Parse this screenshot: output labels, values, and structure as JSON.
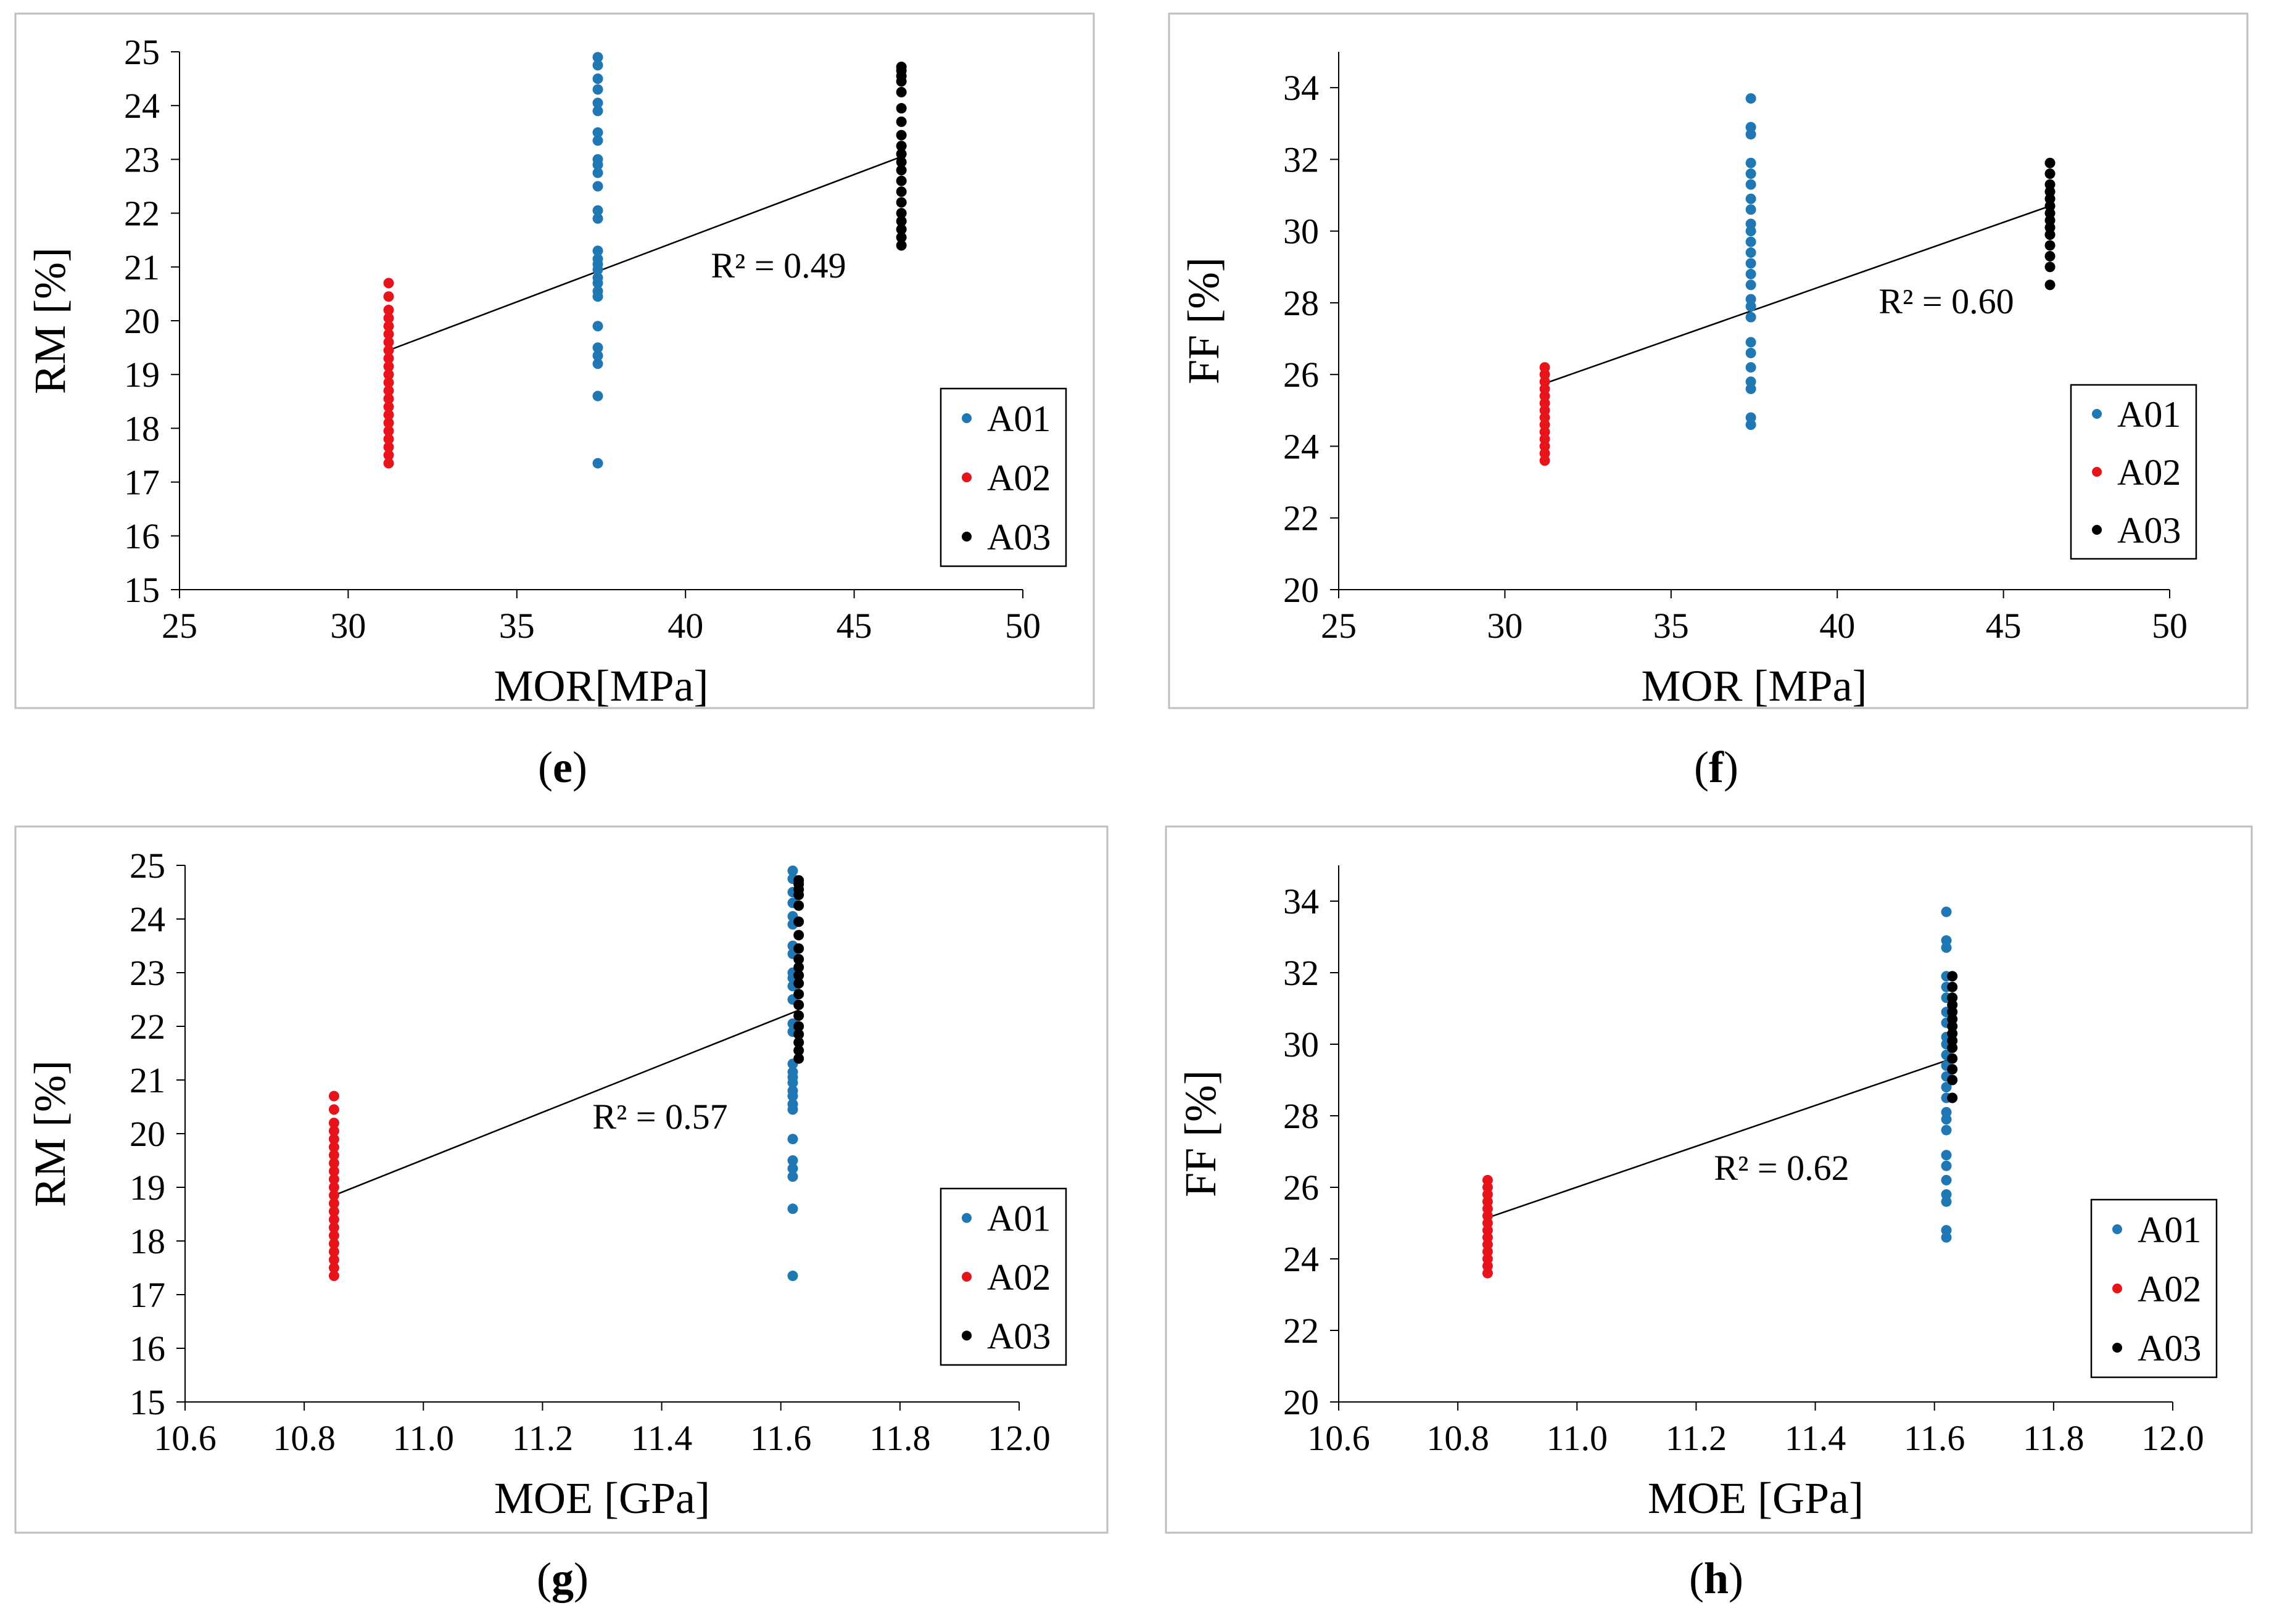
{
  "chart_data": [
    {
      "panel": "(e)",
      "panel_letter": "e",
      "type": "scatter",
      "xlabel": "MOR[MPa]",
      "ylabel": "RM [%]",
      "xlim": [
        25,
        50
      ],
      "ylim": [
        15,
        25
      ],
      "xticks": [
        "25",
        "30",
        "35",
        "40",
        "45",
        "50"
      ],
      "yticks": [
        "15",
        "16",
        "17",
        "18",
        "19",
        "20",
        "21",
        "22",
        "23",
        "24",
        "25"
      ],
      "grid": false,
      "legend_position": "bottom-right",
      "r2_label": "R² = 0.49",
      "trendline": {
        "x": [
          31.2,
          46.4
        ],
        "y": [
          19.45,
          23.05
        ]
      },
      "series": [
        {
          "name": "A01",
          "color": "#1f77b4",
          "x": 37.4,
          "y": [
            17.35,
            18.6,
            19.2,
            19.35,
            19.5,
            19.9,
            20.45,
            20.55,
            20.7,
            20.8,
            20.95,
            21.05,
            21.15,
            21.3,
            21.9,
            22.05,
            22.5,
            22.75,
            22.9,
            23.0,
            23.35,
            23.5,
            23.9,
            24.05,
            24.3,
            24.5,
            24.75,
            24.9
          ]
        },
        {
          "name": "A02",
          "color": "#e8141b",
          "x": 31.2,
          "y": [
            17.35,
            17.5,
            17.65,
            17.8,
            17.95,
            18.1,
            18.25,
            18.4,
            18.55,
            18.7,
            18.85,
            19.0,
            19.15,
            19.3,
            19.45,
            19.6,
            19.75,
            19.9,
            20.05,
            20.2,
            20.45,
            20.7
          ]
        },
        {
          "name": "A03",
          "color": "#000000",
          "x": 46.4,
          "y": [
            21.4,
            21.55,
            21.7,
            21.85,
            22.0,
            22.2,
            22.4,
            22.6,
            22.8,
            22.95,
            23.1,
            23.25,
            23.45,
            23.7,
            23.95,
            24.25,
            24.45,
            24.55,
            24.65,
            24.72
          ]
        }
      ]
    },
    {
      "panel": "(f)",
      "panel_letter": "f",
      "type": "scatter",
      "xlabel": "MOR [MPa]",
      "ylabel": "FF [%]",
      "xlim": [
        25,
        50
      ],
      "ylim": [
        20,
        35
      ],
      "xticks": [
        "25",
        "30",
        "35",
        "40",
        "45",
        "50"
      ],
      "yticks": [
        "20",
        "22",
        "24",
        "26",
        "28",
        "30",
        "32",
        "34"
      ],
      "grid": false,
      "legend_position": "bottom-right",
      "r2_label": "R² = 0.60",
      "trendline": {
        "x": [
          31.2,
          46.4
        ],
        "y": [
          25.75,
          30.7
        ]
      },
      "series": [
        {
          "name": "A01",
          "color": "#1f77b4",
          "x": 37.4,
          "y": [
            24.6,
            24.8,
            25.6,
            25.8,
            26.2,
            26.6,
            26.9,
            27.6,
            27.9,
            28.1,
            28.5,
            28.8,
            29.1,
            29.4,
            29.7,
            30.0,
            30.2,
            30.6,
            30.9,
            31.3,
            31.6,
            31.9,
            32.7,
            32.9,
            33.7
          ]
        },
        {
          "name": "A02",
          "color": "#e8141b",
          "x": 31.2,
          "y": [
            23.6,
            23.8,
            24.0,
            24.2,
            24.4,
            24.6,
            24.8,
            25.0,
            25.2,
            25.4,
            25.6,
            25.8,
            26.0,
            26.2
          ]
        },
        {
          "name": "A03",
          "color": "#000000",
          "x": 46.4,
          "y": [
            28.5,
            29.0,
            29.3,
            29.6,
            29.9,
            30.1,
            30.3,
            30.5,
            30.7,
            30.9,
            31.1,
            31.3,
            31.6,
            31.9
          ]
        }
      ]
    },
    {
      "panel": "(g)",
      "panel_letter": "g",
      "type": "scatter",
      "xlabel": "MOE [GPa]",
      "ylabel": "RM [%]",
      "xlim": [
        10.6,
        12.0
      ],
      "ylim": [
        15,
        25
      ],
      "xticks": [
        "10.6",
        "10.8",
        "11.0",
        "11.2",
        "11.4",
        "11.6",
        "11.8",
        "12.0"
      ],
      "yticks": [
        "15",
        "16",
        "17",
        "18",
        "19",
        "20",
        "21",
        "22",
        "23",
        "24",
        "25"
      ],
      "grid": false,
      "legend_position": "bottom-right",
      "r2_label": "R² = 0.57",
      "trendline": {
        "x": [
          10.85,
          11.63
        ],
        "y": [
          18.85,
          22.3
        ]
      },
      "series": [
        {
          "name": "A01",
          "color": "#1f77b4",
          "x": 11.62,
          "y": [
            17.35,
            18.6,
            19.2,
            19.35,
            19.5,
            19.9,
            20.45,
            20.55,
            20.7,
            20.8,
            20.95,
            21.05,
            21.15,
            21.3,
            21.9,
            22.05,
            22.5,
            22.75,
            22.9,
            23.0,
            23.35,
            23.5,
            23.9,
            24.05,
            24.3,
            24.5,
            24.75,
            24.9
          ]
        },
        {
          "name": "A02",
          "color": "#e8141b",
          "x": 10.85,
          "y": [
            17.35,
            17.5,
            17.65,
            17.8,
            17.95,
            18.1,
            18.25,
            18.4,
            18.55,
            18.7,
            18.85,
            19.0,
            19.15,
            19.3,
            19.45,
            19.6,
            19.75,
            19.9,
            20.05,
            20.2,
            20.45,
            20.7
          ]
        },
        {
          "name": "A03",
          "color": "#000000",
          "x": 11.63,
          "y": [
            21.4,
            21.55,
            21.7,
            21.85,
            22.0,
            22.2,
            22.4,
            22.6,
            22.8,
            22.95,
            23.1,
            23.25,
            23.45,
            23.7,
            23.95,
            24.25,
            24.45,
            24.55,
            24.65,
            24.72
          ]
        }
      ]
    },
    {
      "panel": "(h)",
      "panel_letter": "h",
      "type": "scatter",
      "xlabel": "MOE [GPa]",
      "ylabel": "FF [%]",
      "xlim": [
        10.6,
        12.0
      ],
      "ylim": [
        20,
        35
      ],
      "xticks": [
        "10.6",
        "10.8",
        "11.0",
        "11.2",
        "11.4",
        "11.6",
        "11.8",
        "12.0"
      ],
      "yticks": [
        "20",
        "22",
        "24",
        "26",
        "28",
        "30",
        "32",
        "34"
      ],
      "grid": false,
      "legend_position": "bottom-right",
      "r2_label": "R² = 0.62",
      "trendline": {
        "x": [
          10.85,
          11.63
        ],
        "y": [
          25.15,
          29.6
        ]
      },
      "series": [
        {
          "name": "A01",
          "color": "#1f77b4",
          "x": 11.62,
          "y": [
            24.6,
            24.8,
            25.6,
            25.8,
            26.2,
            26.6,
            26.9,
            27.6,
            27.9,
            28.1,
            28.5,
            28.8,
            29.1,
            29.4,
            29.7,
            30.0,
            30.2,
            30.6,
            30.9,
            31.3,
            31.6,
            31.9,
            32.7,
            32.9,
            33.7
          ]
        },
        {
          "name": "A02",
          "color": "#e8141b",
          "x": 10.85,
          "y": [
            23.6,
            23.8,
            24.0,
            24.2,
            24.4,
            24.6,
            24.8,
            25.0,
            25.2,
            25.4,
            25.6,
            25.8,
            26.0,
            26.2
          ]
        },
        {
          "name": "A03",
          "color": "#000000",
          "x": 11.63,
          "y": [
            28.5,
            29.0,
            29.3,
            29.6,
            29.9,
            30.1,
            30.3,
            30.5,
            30.7,
            30.9,
            31.1,
            31.3,
            31.6,
            31.9
          ]
        }
      ]
    }
  ]
}
